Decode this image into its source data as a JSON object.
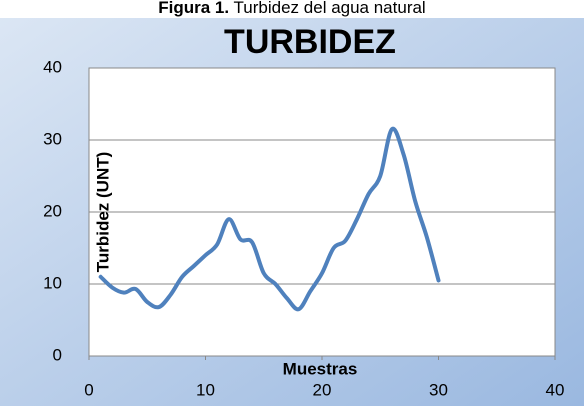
{
  "caption_label": "Figura 1.",
  "caption_text": "Turbidez del agua natural",
  "chart_data": {
    "type": "line",
    "title": "TURBIDEZ",
    "x_label": "Muestras",
    "y_label": "Turbidez (UNT)",
    "x": [
      1,
      2,
      3,
      4,
      5,
      6,
      7,
      8,
      9,
      10,
      11,
      12,
      13,
      14,
      15,
      16,
      17,
      18,
      19,
      20,
      21,
      22,
      23,
      24,
      25,
      26,
      27,
      28,
      29,
      30
    ],
    "series": [
      {
        "name": "Turbidez",
        "color": "#4f81bd",
        "values": [
          11,
          9.5,
          8.8,
          9.3,
          7.5,
          6.8,
          8.5,
          11,
          12.5,
          14,
          15.5,
          19,
          16.2,
          15.8,
          11.5,
          10,
          8,
          6.5,
          9,
          11.5,
          15,
          16,
          19,
          22.5,
          25,
          31.5,
          28,
          21.5,
          16.5,
          10.5
        ]
      }
    ],
    "xlim": [
      0,
      40
    ],
    "xticks": [
      0,
      10,
      20,
      30,
      40
    ],
    "ylim": [
      0,
      40
    ],
    "yticks": [
      0,
      10,
      20,
      30,
      40
    ],
    "grid": true
  }
}
